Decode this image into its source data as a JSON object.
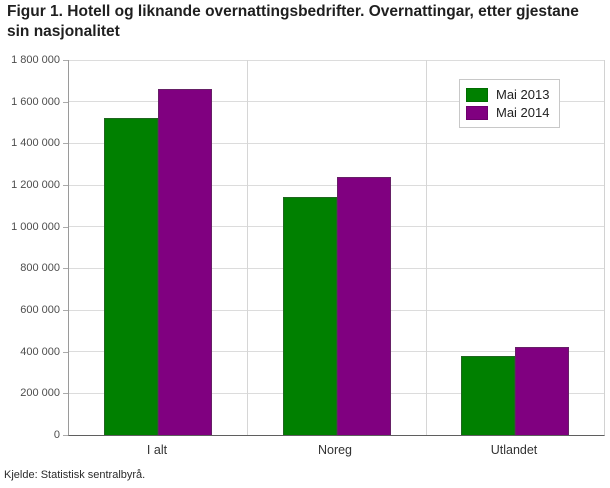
{
  "header": {
    "title": "Figur 1. Hotell og liknande overnattingsbedrifter. Overnattingar, etter gjestane sin nasjonalitet"
  },
  "footer": {
    "source": "Kjelde: Statistisk sentralbyrå."
  },
  "chart_data": {
    "type": "bar",
    "title": "Figur 1. Hotell og liknande overnattingsbedrifter. Overnattingar, etter gjestane sin nasjonalitet",
    "categories": [
      "I alt",
      "Noreg",
      "Utlandet"
    ],
    "series": [
      {
        "name": "Mai 2013",
        "color": "#008000",
        "values": [
          1520000,
          1140000,
          380000
        ]
      },
      {
        "name": "Mai 2014",
        "color": "#800080",
        "values": [
          1660000,
          1238000,
          422000
        ]
      }
    ],
    "xlabel": "",
    "ylabel": "",
    "ylim": [
      0,
      1800000
    ],
    "ytick_step": 200000,
    "ytick_labels": [
      "0",
      "200 000",
      "400 000",
      "600 000",
      "800 000",
      "1 000 000",
      "1 200 000",
      "1 400 000",
      "1 600 000",
      "1 800 000"
    ],
    "grid": true,
    "legend_position": "top-right",
    "source": "Kjelde: Statistisk sentralbyrå."
  }
}
